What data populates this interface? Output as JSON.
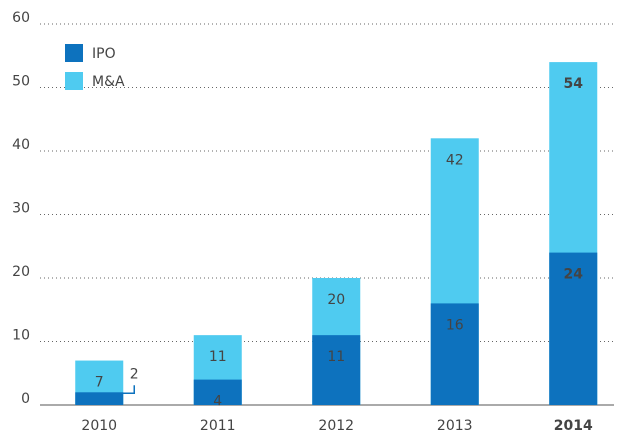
{
  "chart_data": {
    "type": "bar",
    "barmode": "overlay",
    "categories": [
      "2010",
      "2011",
      "2012",
      "2013",
      "2014"
    ],
    "series": [
      {
        "name": "M&A",
        "color": "#4fcbf0",
        "values": [
          7,
          11,
          20,
          42,
          54
        ]
      },
      {
        "name": "IPO",
        "color": "#0d72be",
        "values": [
          2,
          4,
          11,
          16,
          24
        ]
      }
    ],
    "legend_order": [
      1,
      0
    ],
    "legend": "upper left",
    "highlight_index": 4,
    "ylim": [
      0,
      60
    ],
    "yticks": [
      0,
      10,
      20,
      30,
      40,
      50,
      60
    ],
    "grid": true
  }
}
